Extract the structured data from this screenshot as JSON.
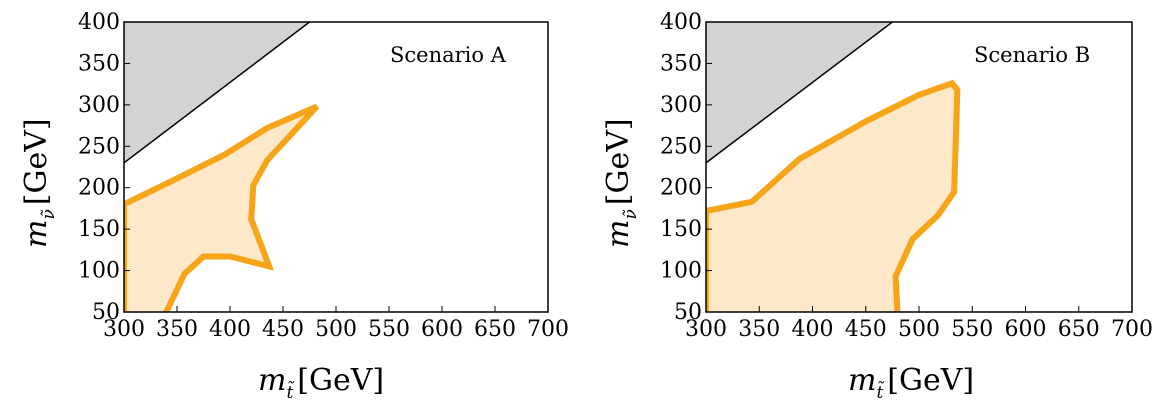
{
  "chart_data": [
    {
      "type": "area",
      "annotation": "Scenario A",
      "xlabel": {
        "symbol": "m",
        "sub": "t̃",
        "unit": "[GeV]"
      },
      "ylabel": {
        "symbol": "m",
        "sub": "ν̃",
        "unit": "[GeV]"
      },
      "xlim": [
        300,
        700
      ],
      "ylim": [
        50,
        400
      ],
      "xticks": [
        "300",
        "350",
        "400",
        "450",
        "500",
        "550",
        "600",
        "650",
        "700"
      ],
      "yticks": [
        "50",
        "100",
        "150",
        "200",
        "250",
        "300",
        "350",
        "400"
      ],
      "excluded_region": {
        "line": [
          [
            300,
            230
          ],
          [
            475,
            400
          ]
        ],
        "color": "#d3d3d3"
      },
      "sensitivity_region": {
        "fill": "#fde9c9",
        "stroke": "#f7a418",
        "points": [
          [
            300,
            180
          ],
          [
            345,
            208
          ],
          [
            395,
            240
          ],
          [
            435,
            272
          ],
          [
            482,
            298
          ],
          [
            435,
            233
          ],
          [
            422,
            203
          ],
          [
            420,
            162
          ],
          [
            437,
            105
          ],
          [
            400,
            117
          ],
          [
            375,
            117
          ],
          [
            357,
            96
          ],
          [
            338,
            45
          ],
          [
            300,
            45
          ]
        ]
      },
      "grid": false
    },
    {
      "type": "area",
      "annotation": "Scenario B",
      "xlabel": {
        "symbol": "m",
        "sub": "t̃",
        "unit": "[GeV]"
      },
      "ylabel": {
        "symbol": "m",
        "sub": "ν̃",
        "unit": "[GeV]"
      },
      "xlim": [
        300,
        700
      ],
      "ylim": [
        50,
        400
      ],
      "xticks": [
        "300",
        "350",
        "400",
        "450",
        "500",
        "550",
        "600",
        "650",
        "700"
      ],
      "yticks": [
        "50",
        "100",
        "150",
        "200",
        "250",
        "300",
        "350",
        "400"
      ],
      "excluded_region": {
        "line": [
          [
            300,
            230
          ],
          [
            475,
            400
          ]
        ],
        "color": "#d3d3d3"
      },
      "sensitivity_region": {
        "fill": "#fde9c9",
        "stroke": "#f7a418",
        "points": [
          [
            300,
            172
          ],
          [
            343,
            183
          ],
          [
            388,
            235
          ],
          [
            450,
            280
          ],
          [
            500,
            312
          ],
          [
            531,
            326
          ],
          [
            536,
            318
          ],
          [
            533,
            195
          ],
          [
            518,
            167
          ],
          [
            494,
            138
          ],
          [
            478,
            93
          ],
          [
            480,
            45
          ],
          [
            300,
            45
          ]
        ]
      },
      "grid": false
    }
  ]
}
